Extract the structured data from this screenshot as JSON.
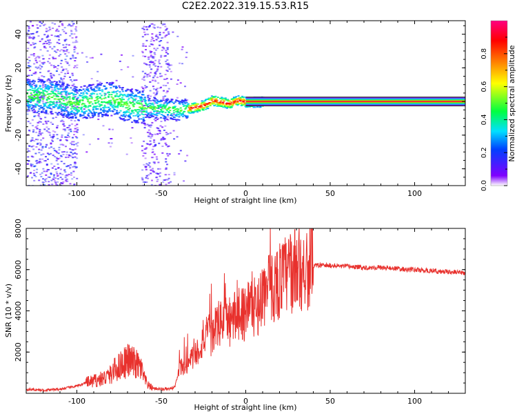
{
  "title": "C2E2.2022.319.15.53.R15",
  "chart_data": [
    {
      "type": "heatmap",
      "name": "spectrogram",
      "xlabel": "Height of straight line (km)",
      "ylabel": "Frequency (Hz)",
      "xlim": [
        -130,
        130
      ],
      "ylim": [
        -50,
        48
      ],
      "xticks": [
        -100,
        -50,
        0,
        50,
        100
      ],
      "xtick_labels": [
        "-100",
        "-50",
        "0",
        "50",
        "100"
      ],
      "yticks": [
        -40,
        -20,
        0,
        20,
        40
      ],
      "ytick_labels": [
        "-40",
        "-20",
        "0",
        "20",
        "40"
      ],
      "colorbar": {
        "label": "Normalized spectral amplitude",
        "range": [
          0,
          1
        ],
        "ticks": [
          0.0,
          0.2,
          0.4,
          0.6,
          0.8
        ],
        "tick_labels": [
          "0.0",
          "0.2",
          "0.4",
          "0.6",
          "0.8"
        ],
        "colors": [
          "#ffffff",
          "#8000ff",
          "#0040ff",
          "#00e0ff",
          "#00ff40",
          "#ffff00",
          "#ff8000",
          "#ff0000",
          "#ff0080"
        ]
      },
      "ridge": {
        "x": [
          -130,
          -115,
          -100,
          -90,
          -80,
          -70,
          -60,
          -50,
          -45,
          -40,
          -35,
          -30,
          -25,
          -20,
          -15,
          -10,
          -5,
          0,
          10,
          20,
          50,
          100,
          130
        ],
        "frequency": [
          4,
          3,
          -1,
          1,
          2,
          -2,
          -3,
          -4,
          -4,
          -5,
          -4,
          -3,
          -2,
          1,
          0,
          -1,
          1,
          0,
          0,
          0,
          0,
          0,
          0
        ]
      }
    },
    {
      "type": "line",
      "name": "snr",
      "xlabel": "Height of straight line (km)",
      "ylabel": "SNR (10 * v/v)",
      "xlim": [
        -130,
        130
      ],
      "ylim": [
        0,
        8000
      ],
      "xticks": [
        -100,
        -50,
        0,
        50,
        100
      ],
      "xtick_labels": [
        "-100",
        "-50",
        "0",
        "50",
        "100"
      ],
      "yticks": [
        2000,
        4000,
        6000,
        8000
      ],
      "ytick_labels": [
        "2000",
        "4000",
        "6000",
        "8000"
      ],
      "color": "#e8312d",
      "series": [
        {
          "name": "SNR",
          "x": [
            -130,
            -120,
            -110,
            -100,
            -95,
            -90,
            -85,
            -80,
            -78,
            -75,
            -72,
            -70,
            -68,
            -65,
            -62,
            -60,
            -58,
            -55,
            -50,
            -45,
            -42,
            -40,
            -38,
            -35,
            -33,
            -30,
            -28,
            -25,
            -22,
            -20,
            -18,
            -15,
            -13,
            -12,
            -11,
            -10,
            -8,
            -5,
            -3,
            -1,
            0,
            2,
            4,
            6,
            8,
            10,
            12,
            15,
            18,
            20,
            25,
            30,
            35,
            40,
            50,
            60,
            70,
            80,
            90,
            95,
            100,
            105,
            110,
            115,
            120,
            125,
            130
          ],
          "y": [
            200,
            150,
            200,
            350,
            500,
            600,
            700,
            900,
            1100,
            1300,
            1500,
            1600,
            1550,
            1400,
            1200,
            700,
            400,
            250,
            200,
            200,
            300,
            900,
            1400,
            1200,
            1600,
            1900,
            2100,
            2600,
            2900,
            2700,
            3200,
            3400,
            3700,
            4500,
            3300,
            3200,
            3600,
            3900,
            4100,
            3800,
            4200,
            4300,
            4400,
            3900,
            4500,
            4800,
            5000,
            5100,
            5300,
            5500,
            5800,
            6000,
            6150,
            6200,
            6200,
            6150,
            6100,
            6100,
            6050,
            6000,
            6000,
            5950,
            5950,
            5900,
            5900,
            5850,
            5850
          ]
        }
      ]
    }
  ]
}
